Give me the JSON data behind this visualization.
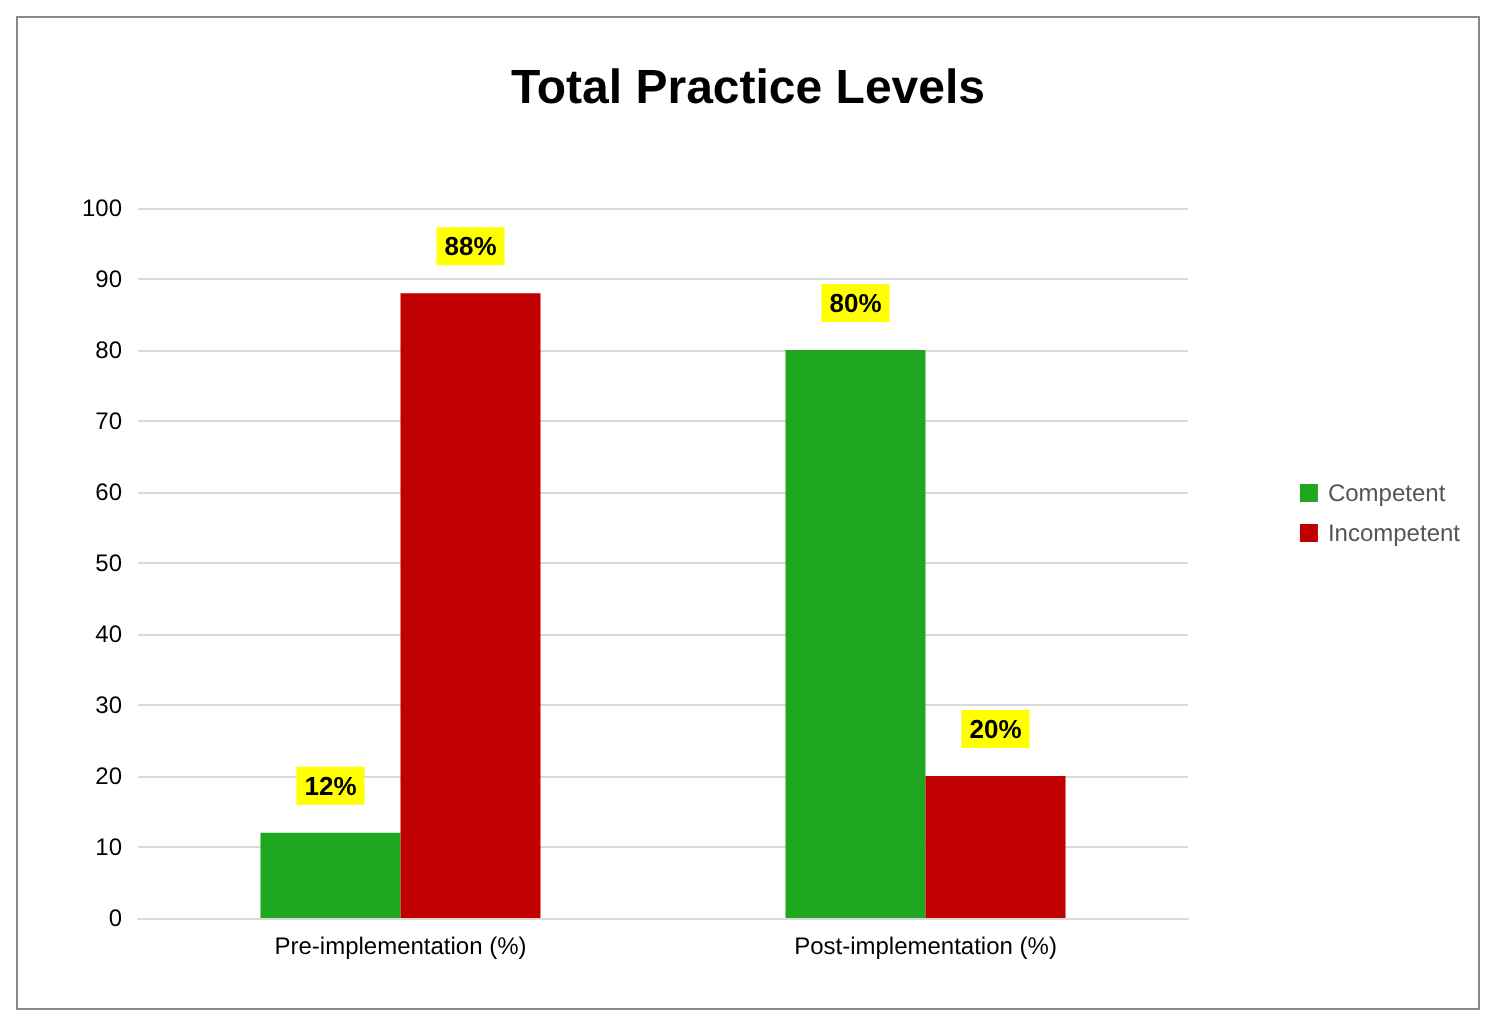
{
  "chart_data": {
    "type": "bar",
    "title": "Total Practice Levels",
    "categories": [
      "Pre-implementation (%)",
      "Post-implementation (%)"
    ],
    "series": [
      {
        "name": "Competent",
        "color": "#1fa81f",
        "values": [
          12,
          80
        ],
        "value_labels": [
          "12%",
          "80%"
        ]
      },
      {
        "name": "Incompetent",
        "color": "#c00000",
        "values": [
          88,
          20
        ],
        "value_labels": [
          "88%",
          "20%"
        ]
      }
    ],
    "ylim": [
      0,
      100
    ],
    "yticks": [
      0,
      10,
      20,
      30,
      40,
      50,
      60,
      70,
      80,
      90,
      100
    ],
    "grid": "y",
    "legend": "right"
  }
}
